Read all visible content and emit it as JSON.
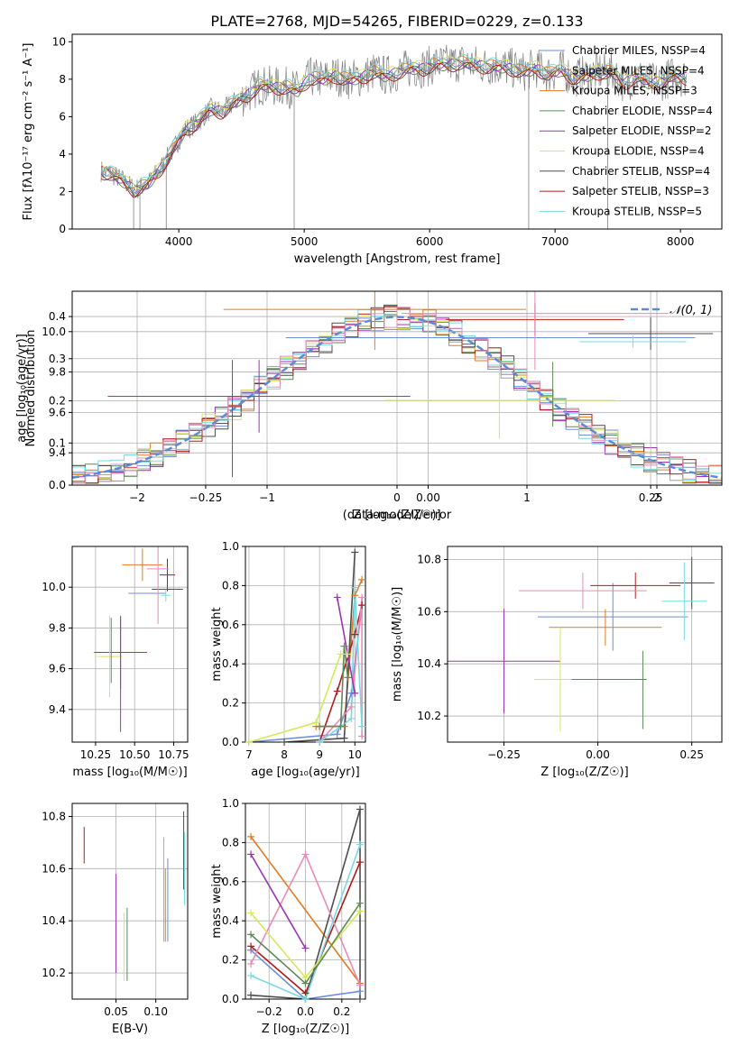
{
  "figure_title": "PLATE=2768, MJD=54265, FIBERID=0229, z=0.133",
  "colors": {
    "Chabrier MILES": "#6b8fd9",
    "Salpeter MILES": "#a0a0a0",
    "Kroupa MILES": "#e07b22",
    "Chabrier ELODIE": "#5d8a5a",
    "Salpeter ELODIE": "#9b33b5",
    "Kroupa ELODIE": "#d6e85a",
    "Chabrier STELIB": "#4d4d4d",
    "Salpeter STELIB": "#b01c1c",
    "Kroupa STELIB": "#7ad9e0",
    "Pink": "#e88ab8",
    "normal_fit": "#5b8bd6"
  },
  "chart_data": [
    {
      "type": "line",
      "title": "PLATE=2768, MJD=54265, FIBERID=0229, z=0.133",
      "xlabel": "wavelength [Angstrom, rest frame]",
      "ylabel": "Flux [fλ10⁻¹⁷ erg cm⁻² s⁻¹ A⁻¹]",
      "xlim": [
        3150,
        8330
      ],
      "ylim": [
        0,
        10.4
      ],
      "xticks": [
        4000,
        5000,
        6000,
        7000,
        8000
      ],
      "yticks": [
        0,
        2,
        4,
        6,
        8,
        10
      ],
      "grid": false,
      "legend_position": "right",
      "data_spectrum": {
        "name": "data",
        "x": [
          3380,
          3450,
          3550,
          3650,
          3750,
          3850,
          3950,
          4050,
          4150,
          4250,
          4350,
          4450,
          4550,
          4650,
          4750,
          4850,
          4950,
          5050,
          5150,
          5250,
          5350,
          5450,
          5550,
          5650,
          5750,
          5850,
          5950,
          6050,
          6150,
          6250,
          6350,
          6450,
          6550,
          6650,
          6750,
          6850,
          6950,
          7050,
          7150,
          7250,
          7350,
          7450,
          7550,
          7650,
          7750,
          7850,
          7950,
          8050
        ],
        "y": [
          3.1,
          3.0,
          2.6,
          2.1,
          2.4,
          3.2,
          4.2,
          5.3,
          5.7,
          6.4,
          6.3,
          6.8,
          7.2,
          7.7,
          7.6,
          7.6,
          7.4,
          8.1,
          8.0,
          8.2,
          8.0,
          8.1,
          8.4,
          8.2,
          8.4,
          8.6,
          8.6,
          8.8,
          8.8,
          8.9,
          8.8,
          8.7,
          8.7,
          8.6,
          8.4,
          8.6,
          8.3,
          8.5,
          8.1,
          8.2,
          8.4,
          8.4,
          7.8,
          8.2,
          7.8,
          7.9,
          8.2,
          8.1
        ]
      },
      "series": [
        {
          "name": "Chabrier MILES, N_SSP=4",
          "offset": 0.05
        },
        {
          "name": "Salpeter MILES, N_SSP=4",
          "offset": -0.05
        },
        {
          "name": "Kroupa MILES, N_SSP=3",
          "offset": 0.1
        },
        {
          "name": "Chabrier ELODIE, N_SSP=4",
          "offset": -0.1
        },
        {
          "name": "Salpeter ELODIE, N_SSP=2",
          "offset": 0.0
        },
        {
          "name": "Kroupa ELODIE, N_SSP=4",
          "offset": 0.15
        },
        {
          "name": "Chabrier STELIB, N_SSP=4",
          "offset": -0.15
        },
        {
          "name": "Salpeter STELIB, N_SSP=3",
          "offset": -0.2
        },
        {
          "name": "Kroupa STELIB, N_SSP=5",
          "offset": 0.2
        }
      ]
    },
    {
      "type": "line",
      "xlabel": "(data-model)/error",
      "ylabel": "Normed distribution",
      "xlim": [
        -2.5,
        2.5
      ],
      "ylim": [
        0,
        0.46
      ],
      "xticks": [
        -2,
        -1,
        0,
        1,
        2
      ],
      "yticks": [
        0.0,
        0.1,
        0.2,
        0.3,
        0.4
      ],
      "grid": true,
      "legend_position": "top-right",
      "legend": "𝒩(0, 1)",
      "bin_width": 0.1,
      "bin_start": -2.5,
      "normal_curve": {
        "mean": 0,
        "sigma": 1
      }
    },
    {
      "type": "scatter",
      "xlabel": "Z [log₁₀(Z/Z☉)]",
      "ylabel": "age  [log₁₀(age/yr)]",
      "xlim": [
        -0.4,
        0.33
      ],
      "ylim": [
        9.24,
        10.2
      ],
      "xticks": [
        -0.25,
        0.0,
        0.25
      ],
      "yticks": [
        9.4,
        9.6,
        9.8,
        10.0
      ],
      "grid": true,
      "points": [
        {
          "model": "Chabrier MILES",
          "x": 0.07,
          "xerr": 0.23,
          "y": 9.97,
          "yerr": 0.0
        },
        {
          "model": "Kroupa MILES",
          "x": -0.06,
          "xerr": 0.17,
          "y": 10.11,
          "yerr": 0.2
        },
        {
          "model": "Salpeter STELIB",
          "x": 0.12,
          "xerr": 0.1,
          "y": 10.06,
          "yerr": 0.08
        },
        {
          "model": "Chabrier STELIB",
          "x": 0.25,
          "xerr": 0.07,
          "y": 9.99,
          "yerr": 0.08
        },
        {
          "model": "Pink",
          "x": 0.12,
          "xerr": 0.15,
          "y": 10.09,
          "yerr": 0.28
        },
        {
          "model": "Kroupa STELIB",
          "x": 0.23,
          "xerr": 0.06,
          "y": 9.95,
          "yerr": 0.03
        },
        {
          "model": "Salpeter ELODIE",
          "x": -0.19,
          "xerr": 0.17,
          "y": 9.68,
          "yerr": 0.18
        },
        {
          "model": "Kroupa ELODIE",
          "x": 0.08,
          "xerr": 0.13,
          "y": 9.66,
          "yerr": 0.19
        },
        {
          "model": "Chabrier ELODIE",
          "x": 0.14,
          "xerr": 0.0,
          "y": 9.69,
          "yerr": 0.16
        },
        {
          "model": "Salpeter ELODIE",
          "x": -0.22,
          "xerr": 0.0,
          "y": 9.57,
          "yerr": 0.29
        }
      ]
    },
    {
      "type": "scatter",
      "xlabel": "mass [log₁₀(M/M☉)]",
      "ylabel": "",
      "xlim": [
        10.1,
        10.84
      ],
      "ylim": [
        9.24,
        10.2
      ],
      "xticks": [
        10.25,
        10.5,
        10.75
      ],
      "yticks": [
        9.4,
        9.6,
        9.8,
        10.0
      ],
      "grid": true,
      "points": [
        {
          "model": "Chabrier MILES",
          "x": 10.58,
          "xerr": 0.12,
          "y": 9.97,
          "yerr": 0.0
        },
        {
          "model": "Kroupa MILES",
          "x": 10.55,
          "xerr": 0.13,
          "y": 10.11,
          "yerr": 0.08
        },
        {
          "model": "Salpeter STELIB",
          "x": 10.71,
          "xerr": 0.05,
          "y": 10.06,
          "yerr": 0.08
        },
        {
          "model": "Chabrier STELIB",
          "x": 10.71,
          "xerr": 0.1,
          "y": 9.99,
          "yerr": 0.0
        },
        {
          "model": "Pink",
          "x": 10.65,
          "xerr": 0.07,
          "y": 10.09,
          "yerr": 0.27
        },
        {
          "model": "Kroupa STELIB",
          "x": 10.7,
          "xerr": 0.03,
          "y": 9.96,
          "yerr": 0.03
        },
        {
          "model": "Salpeter ELODIE",
          "x": 10.41,
          "xerr": 0.17,
          "y": 9.68,
          "yerr": 0.18
        },
        {
          "model": "Kroupa ELODIE",
          "x": 10.34,
          "xerr": 0.08,
          "y": 9.66,
          "yerr": 0.2
        },
        {
          "model": "Chabrier ELODIE",
          "x": 10.35,
          "xerr": 0.0,
          "y": 9.69,
          "yerr": 0.16
        },
        {
          "model": "Salpeter ELODIE",
          "x": 10.41,
          "xerr": 0.0,
          "y": 9.57,
          "yerr": 0.28
        }
      ]
    },
    {
      "type": "line",
      "xlabel": "age  [log₁₀(age/yr)]",
      "ylabel": "mass weight",
      "xlim": [
        6.9,
        10.3
      ],
      "ylim": [
        0,
        1.0
      ],
      "xticks": [
        7,
        8,
        9,
        10
      ],
      "yticks": [
        0.0,
        0.2,
        0.4,
        0.6,
        0.8,
        1.0
      ],
      "grid": true,
      "series": [
        {
          "model": "Chabrier MILES",
          "x": [
            7.0,
            9.5,
            9.9,
            10.2
          ],
          "y": [
            0.0,
            0.04,
            0.25,
            0.7
          ]
        },
        {
          "model": "Kroupa MILES",
          "x": [
            8.9,
            9.7,
            10.0,
            10.2
          ],
          "y": [
            0.08,
            0.08,
            0.75,
            0.83
          ]
        },
        {
          "model": "Salpeter STELIB",
          "x": [
            9.0,
            9.5,
            10.0,
            10.2
          ],
          "y": [
            0.0,
            0.26,
            0.55,
            0.7
          ]
        },
        {
          "model": "Chabrier STELIB",
          "x": [
            8.0,
            9.7,
            10.0
          ],
          "y": [
            0.0,
            0.02,
            0.97
          ]
        },
        {
          "model": "Pink",
          "x": [
            9.0,
            9.9,
            10.2,
            10.2
          ],
          "y": [
            0.0,
            0.18,
            0.74,
            0.03
          ]
        },
        {
          "model": "Kroupa STELIB",
          "x": [
            9.0,
            9.9,
            10.0,
            10.2
          ],
          "y": [
            0.0,
            0.12,
            0.79,
            0.08
          ]
        },
        {
          "model": "Salpeter ELODIE",
          "x": [
            9.5,
            10.0
          ],
          "y": [
            0.74,
            0.25
          ]
        },
        {
          "model": "Kroupa ELODIE",
          "x": [
            7.0,
            8.9,
            9.6,
            9.8
          ],
          "y": [
            0.0,
            0.1,
            0.45,
            0.45
          ]
        },
        {
          "model": "Chabrier ELODIE",
          "x": [
            9.0,
            9.6,
            9.7,
            9.8
          ],
          "y": [
            0.08,
            0.08,
            0.49,
            0.33
          ]
        }
      ]
    },
    {
      "type": "scatter",
      "xlabel": "Z [log₁₀(Z/Z☉)]",
      "ylabel": "mass [log₁₀(M/M☉)]",
      "xlim": [
        -0.4,
        0.33
      ],
      "ylim": [
        10.1,
        10.85
      ],
      "xticks": [
        -0.25,
        0.0,
        0.25
      ],
      "yticks": [
        10.2,
        10.4,
        10.6,
        10.8
      ],
      "grid": true,
      "points": [
        {
          "model": "Chabrier MILES",
          "x": 0.04,
          "xerr": 0.2,
          "y": 10.58,
          "yerr": 0.13
        },
        {
          "model": "Kroupa MILES",
          "x": 0.02,
          "xerr": 0.15,
          "y": 10.54,
          "yerr": 0.07
        },
        {
          "model": "Salpeter STELIB",
          "x": 0.1,
          "xerr": 0.12,
          "y": 10.7,
          "yerr": 0.05
        },
        {
          "model": "Chabrier STELIB",
          "x": 0.25,
          "xerr": 0.06,
          "y": 10.71,
          "yerr": 0.1
        },
        {
          "model": "Pink",
          "x": -0.04,
          "xerr": 0.17,
          "y": 10.68,
          "yerr": 0.07
        },
        {
          "model": "Kroupa STELIB",
          "x": 0.23,
          "xerr": 0.06,
          "y": 10.64,
          "yerr": 0.15
        },
        {
          "model": "Salpeter ELODIE",
          "x": -0.25,
          "xerr": 0.15,
          "y": 10.41,
          "yerr": 0.2
        },
        {
          "model": "Kroupa ELODIE",
          "x": -0.1,
          "xerr": 0.07,
          "y": 10.34,
          "yerr": 0.2
        },
        {
          "model": "Chabrier ELODIE",
          "x": 0.03,
          "xerr": 0.1,
          "y": 10.34,
          "yerr": 0.0
        },
        {
          "model": "Chabrier ELODIE",
          "x": 0.12,
          "xerr": 0.0,
          "y": 10.3,
          "yerr": 0.15
        }
      ]
    },
    {
      "type": "scatter",
      "xlabel": "E(B-V)",
      "ylabel": "",
      "xlim": [
        -0.005,
        0.14
      ],
      "ylim": [
        10.1,
        10.85
      ],
      "xticks": [
        0.05,
        0.1
      ],
      "yticks": [
        10.2,
        10.4,
        10.6,
        10.8
      ],
      "grid": true,
      "points": [
        {
          "model": "Salpeter STELIB",
          "x": 0.01,
          "xerr": 0.0,
          "y": 10.69,
          "yerr": 0.07
        },
        {
          "model": "Salpeter ELODIE",
          "x": 0.05,
          "xerr": 0.0,
          "y": 10.39,
          "yerr": 0.19
        },
        {
          "model": "Kroupa ELODIE",
          "x": 0.06,
          "xerr": 0.0,
          "y": 10.3,
          "yerr": 0.13
        },
        {
          "model": "Chabrier ELODIE",
          "x": 0.064,
          "xerr": 0.0,
          "y": 10.31,
          "yerr": 0.14
        },
        {
          "model": "Pink",
          "x": 0.11,
          "xerr": 0.0,
          "y": 10.52,
          "yerr": 0.2
        },
        {
          "model": "Kroupa MILES",
          "x": 0.112,
          "xerr": 0.0,
          "y": 10.46,
          "yerr": 0.14
        },
        {
          "model": "Chabrier MILES",
          "x": 0.115,
          "xerr": 0.0,
          "y": 10.48,
          "yerr": 0.16
        },
        {
          "model": "Chabrier STELIB",
          "x": 0.135,
          "xerr": 0.0,
          "y": 10.67,
          "yerr": 0.15
        },
        {
          "model": "Kroupa STELIB",
          "x": 0.136,
          "xerr": 0.0,
          "y": 10.6,
          "yerr": 0.14
        }
      ]
    },
    {
      "type": "line",
      "xlabel": "Z [log₁₀(Z/Z☉)]",
      "ylabel": "mass weight",
      "xlim": [
        -0.33,
        0.33
      ],
      "ylim": [
        0,
        1.0
      ],
      "xticks": [
        -0.2,
        0.0,
        0.2
      ],
      "yticks": [
        0.0,
        0.2,
        0.4,
        0.6,
        0.8,
        1.0
      ],
      "grid": true,
      "series": [
        {
          "model": "Chabrier MILES",
          "x": [
            -0.3,
            0.0,
            0.3
          ],
          "y": [
            0.25,
            0.0,
            0.04
          ]
        },
        {
          "model": "Kroupa MILES",
          "x": [
            -0.3,
            0.3
          ],
          "y": [
            0.83,
            0.08
          ]
        },
        {
          "model": "Salpeter STELIB",
          "x": [
            -0.3,
            0.0,
            0.3
          ],
          "y": [
            0.27,
            0.03,
            0.7
          ]
        },
        {
          "model": "Chabrier STELIB",
          "x": [
            -0.3,
            0.0,
            0.3,
            0.3
          ],
          "y": [
            0.02,
            0.0,
            0.97,
            0.0
          ]
        },
        {
          "model": "Pink",
          "x": [
            -0.3,
            0.0,
            0.3
          ],
          "y": [
            0.18,
            0.74,
            0.07
          ]
        },
        {
          "model": "Kroupa STELIB",
          "x": [
            -0.3,
            0.0,
            0.3
          ],
          "y": [
            0.12,
            0.0,
            0.79
          ]
        },
        {
          "model": "Salpeter ELODIE",
          "x": [
            -0.3,
            0.0
          ],
          "y": [
            0.74,
            0.26
          ]
        },
        {
          "model": "Kroupa ELODIE",
          "x": [
            -0.3,
            0.0,
            0.3
          ],
          "y": [
            0.44,
            0.11,
            0.45
          ]
        },
        {
          "model": "Chabrier ELODIE",
          "x": [
            -0.3,
            0.0,
            0.3
          ],
          "y": [
            0.33,
            0.08,
            0.49
          ]
        }
      ]
    }
  ]
}
